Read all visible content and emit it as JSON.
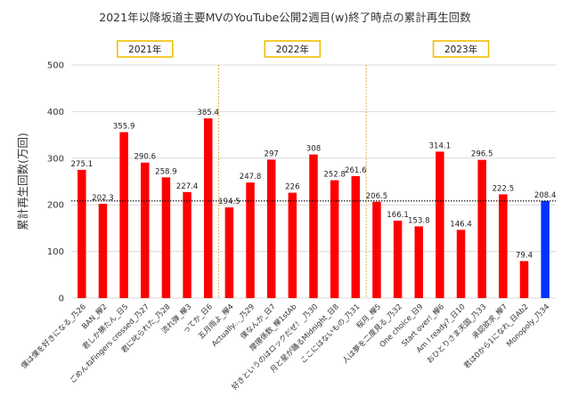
{
  "chart_data": {
    "type": "bar",
    "title": "2021年以降坂道主要MVのYouTube公開2週目(w)終了時点の累計再生回数",
    "ylabel": "累計再生回数(万回)",
    "xlabel": "",
    "ylim": [
      0,
      500
    ],
    "yticks": [
      0,
      100,
      200,
      300,
      400,
      500
    ],
    "grid": true,
    "reference_line": 208.4,
    "categories": [
      "僕は僕を好きになる_乃26",
      "BAN_欅2",
      "君しか勝たん_日5",
      "ごめんねFingers crossed_乃27",
      "君に叱られた_乃28",
      "流れ弾_欅3",
      "ってか_日6",
      "五月雨よ_欅4",
      "Actually..._乃29",
      "僕なんか_日7",
      "摩擦係数_欅1stAb",
      "好きというのはロックだぜ！_乃30",
      "月と星が踊るMidnight_日8",
      "ここにはないもの_乃31",
      "桜月_欅5",
      "人は夢を二度見る_乃32",
      "One choice_日9",
      "Start over!_欅6",
      "Am I ready?_日10",
      "おひとりさま天国_乃33",
      "承認欲求_欅7",
      "君は0から1になれ_日Ab2",
      "Monopoly_乃34"
    ],
    "values": [
      275.1,
      202.3,
      355.9,
      290.6,
      258.9,
      227.4,
      385.4,
      194.5,
      247.8,
      297,
      226,
      308,
      252.8,
      261.6,
      206.5,
      166.1,
      153.8,
      314.1,
      146.4,
      296.5,
      222.5,
      79.4,
      208.4
    ],
    "value_labels": [
      "275.1",
      "202.3",
      "355.9",
      "290.6",
      "258.9",
      "227.4",
      "385.4",
      "194.5",
      "247.8",
      "297",
      "226",
      "308",
      "252.8",
      "261.6",
      "206.5",
      "166.1",
      "153.8",
      "314.1",
      "146.4",
      "296.5",
      "222.5",
      "79.4",
      "208.4"
    ],
    "year_groups": [
      {
        "label": "2021年",
        "start": 0,
        "end": 6
      },
      {
        "label": "2022年",
        "start": 7,
        "end": 13
      },
      {
        "label": "2023年",
        "start": 14,
        "end": 22
      }
    ],
    "colors": {
      "bar": "#ff0000",
      "highlight_bar": "#0033ff",
      "highlight_index": 22,
      "grid": "#d9d9d9",
      "year_box": "#f0c000",
      "separator": "#d4a017"
    }
  }
}
